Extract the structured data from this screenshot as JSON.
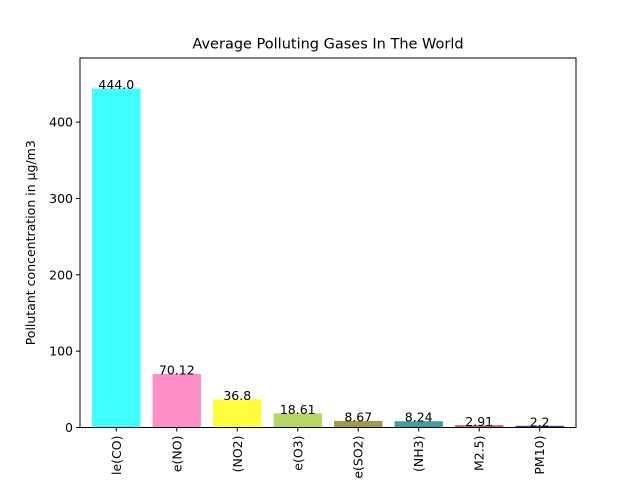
{
  "chart_data": {
    "type": "bar",
    "title": "Average Polluting Gases In The World",
    "xlabel": "",
    "ylabel": "Pollutant concentration in µg/m3",
    "categories": [
      "le(CO)",
      "e(NO)",
      "(NO2)",
      "e(O3)",
      "e(SO2)",
      "(NH3)",
      "M2.5)",
      "PM10)"
    ],
    "values": [
      444.0,
      70.12,
      36.8,
      18.61,
      8.67,
      8.24,
      2.91,
      2.2
    ],
    "value_labels": [
      "444.0",
      "70.12",
      "36.8",
      "18.61",
      "8.67",
      "8.24",
      "2.91",
      "2.2"
    ],
    "colors": [
      "#3ffefe",
      "#fe8ec6",
      "#fefe3f",
      "#b5d660",
      "#a09c45",
      "#41a09c",
      "#c25a55",
      "#3a3a9e"
    ],
    "yticks": [
      0,
      100,
      200,
      300,
      400
    ],
    "ylim": [
      0,
      484
    ],
    "grid": false,
    "legend": "none"
  }
}
